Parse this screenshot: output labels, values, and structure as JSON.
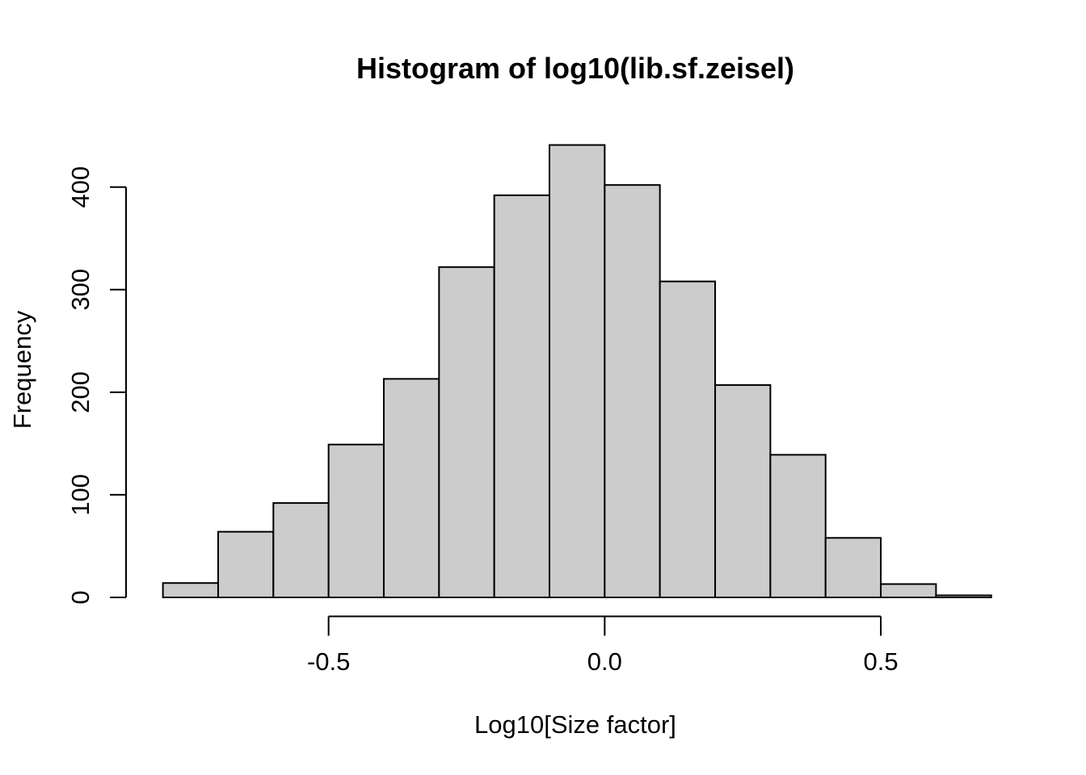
{
  "chart_data": {
    "type": "bar",
    "subtype": "histogram",
    "title": "Histogram of log10(lib.sf.zeisel)",
    "xlabel": "Log10[Size factor]",
    "ylabel": "Frequency",
    "bin_edges": [
      -0.8,
      -0.7,
      -0.6,
      -0.5,
      -0.4,
      -0.3,
      -0.2,
      -0.1,
      0.0,
      0.1,
      0.2,
      0.3,
      0.4,
      0.5,
      0.6,
      0.7
    ],
    "counts": [
      14,
      64,
      92,
      149,
      213,
      322,
      392,
      441,
      402,
      308,
      207,
      139,
      58,
      13,
      2
    ],
    "x_ticks": {
      "values": [
        -0.5,
        0.0,
        0.5
      ],
      "labels": [
        "-0.5",
        "0.0",
        "0.5"
      ]
    },
    "y_ticks": {
      "values": [
        0,
        100,
        200,
        300,
        400
      ],
      "labels": [
        "0",
        "100",
        "200",
        "300",
        "400"
      ]
    },
    "xlim": [
      -0.85,
      0.75
    ],
    "ylim": [
      0,
      441
    ],
    "grid": false,
    "legend": "none",
    "colors": {
      "background": "#ffffff",
      "bar_fill": "#cccccc",
      "bar_border": "#000000",
      "axis": "#000000",
      "text": "#000000"
    }
  }
}
